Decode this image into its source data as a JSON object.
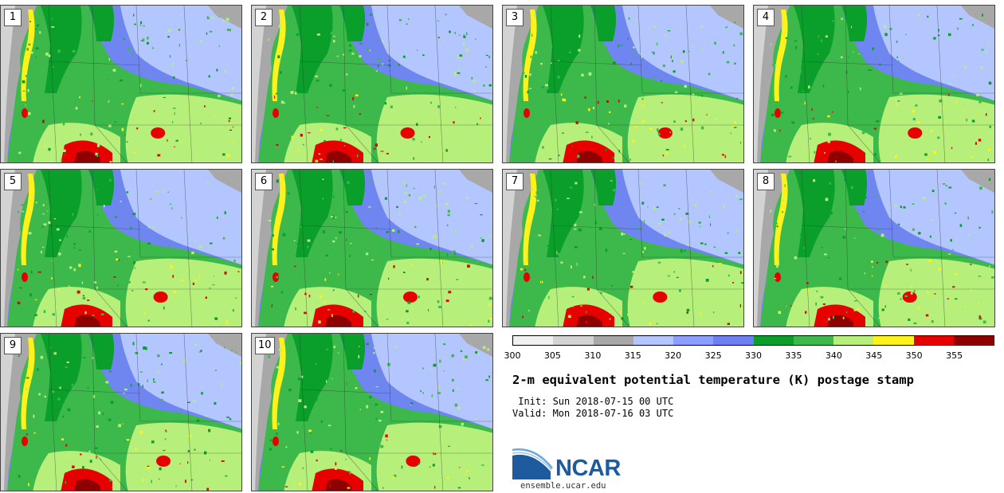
{
  "panels": [
    {
      "label": "1"
    },
    {
      "label": "2"
    },
    {
      "label": "3"
    },
    {
      "label": "4"
    },
    {
      "label": "5"
    },
    {
      "label": "6"
    },
    {
      "label": "7"
    },
    {
      "label": "8"
    },
    {
      "label": "9"
    },
    {
      "label": "10"
    }
  ],
  "colorbar": {
    "colors": [
      "#f0f0f0",
      "#d3d3d3",
      "#a8a8a8",
      "#b4c6ff",
      "#8c9eff",
      "#6d7ff2",
      "#0a9f2a",
      "#3cb94a",
      "#b6f07a",
      "#fff21a",
      "#e60000",
      "#8f0000"
    ],
    "tick_labels": [
      "300",
      "305",
      "310",
      "315",
      "320",
      "325",
      "330",
      "335",
      "340",
      "345",
      "350",
      "355"
    ]
  },
  "title": "2-m equivalent potential temperature (K) postage stamp",
  "init_line": " Init: Sun 2018-07-15 00 UTC",
  "valid_line": "Valid: Mon 2018-07-16 03 UTC",
  "logo": {
    "text": "NCAR",
    "url": "ensemble.ucar.edu"
  },
  "colors": {
    "ocean": "#a8a8a8",
    "land_light": "#d3d3d3",
    "brand": "#1d5a9e"
  }
}
